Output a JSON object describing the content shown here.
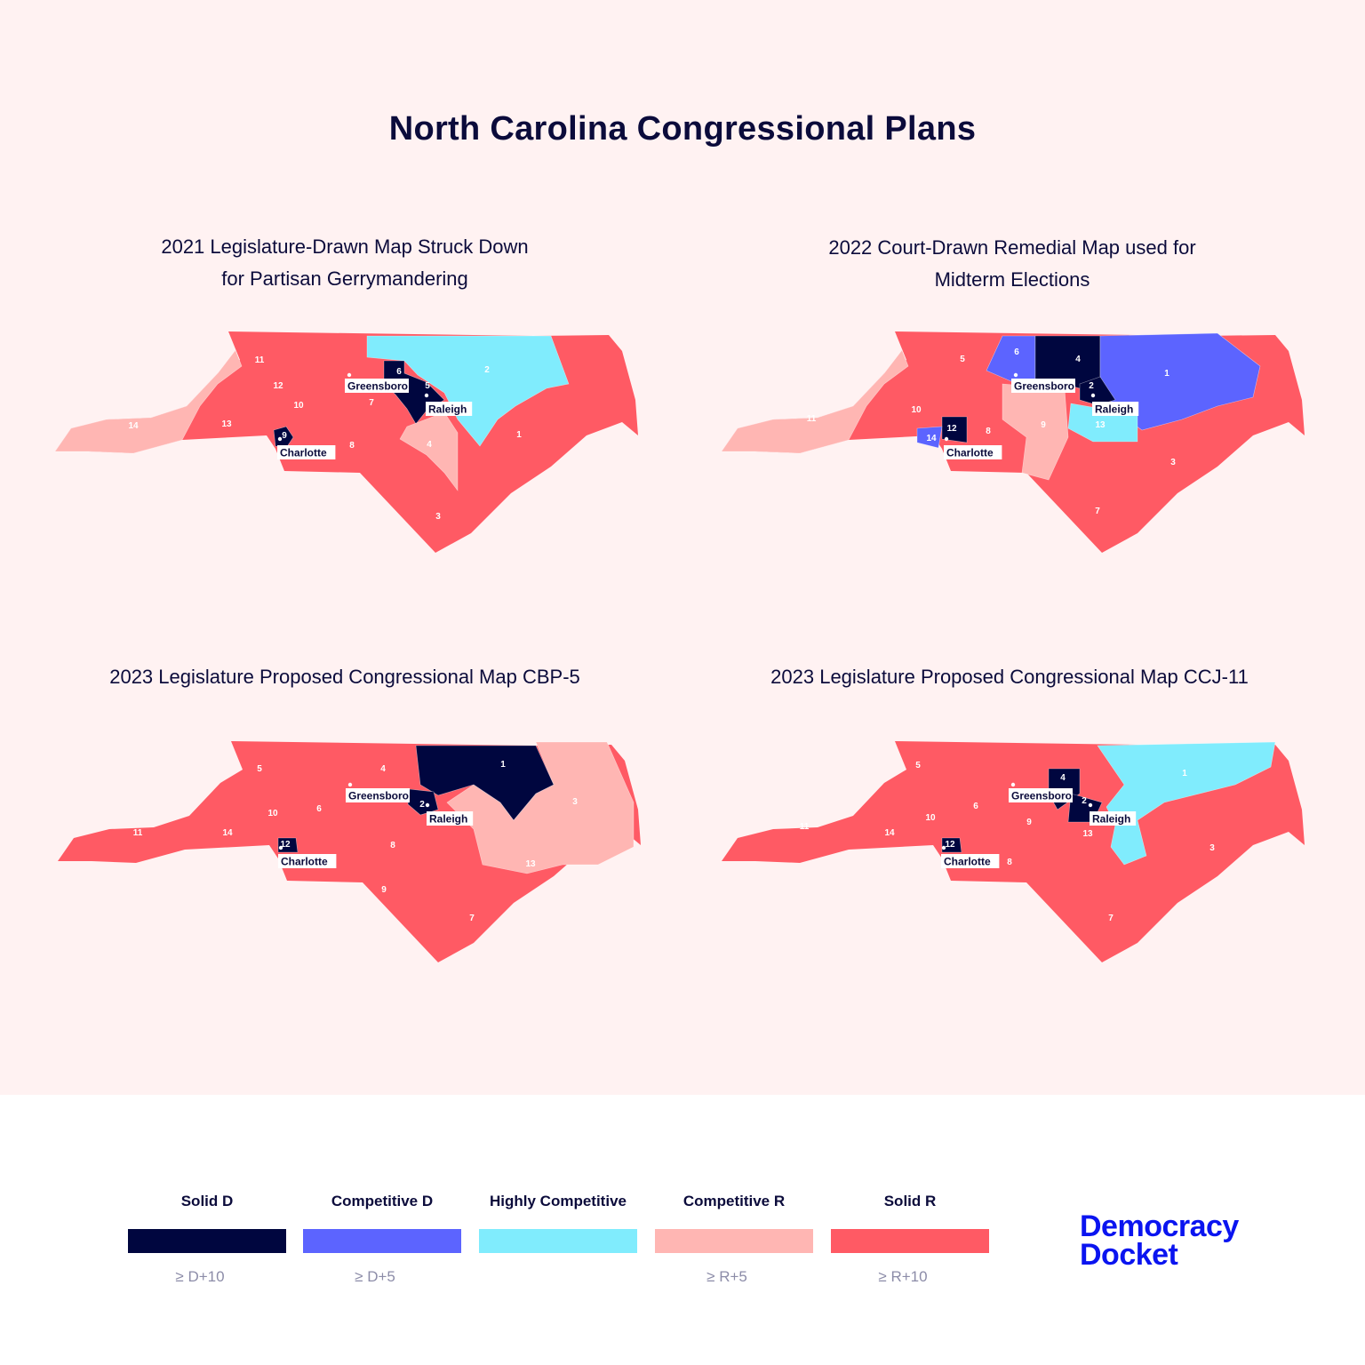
{
  "title": "North Carolina Congressional Plans",
  "colors": {
    "solid_d": "#00063f",
    "competitive_d": "#5c64ff",
    "highly_competitive": "#80ecfd",
    "competitive_r": "#ffb6b3",
    "solid_r": "#ff5a64"
  },
  "maps": [
    {
      "title_lines": [
        "2021 Legislature-Drawn Map Struck Down",
        "for Partisan Gerrymandering"
      ],
      "cities": [
        "Greensboro",
        "Raleigh",
        "Charlotte"
      ],
      "regions": {
        "west": "competitive_r",
        "a": "highly_competitive",
        "b": "solid_d",
        "c": "solid_d",
        "d": "competitive_r"
      },
      "district_labels": [
        {
          "text": "11",
          "cat": "solid_r"
        },
        {
          "text": "12",
          "cat": "solid_r"
        },
        {
          "text": "10",
          "cat": "solid_r"
        },
        {
          "text": "13",
          "cat": "solid_r"
        },
        {
          "text": "14",
          "cat": "competitive_r"
        },
        {
          "text": "9",
          "cat": "solid_d"
        },
        {
          "text": "8",
          "cat": "solid_r"
        },
        {
          "text": "7",
          "cat": "solid_r"
        },
        {
          "text": "6",
          "cat": "solid_d"
        },
        {
          "text": "5",
          "cat": "solid_d"
        },
        {
          "text": "2",
          "cat": "highly_competitive"
        },
        {
          "text": "4",
          "cat": "competitive_r"
        },
        {
          "text": "1",
          "cat": "solid_r"
        },
        {
          "text": "3",
          "cat": "solid_r"
        }
      ]
    },
    {
      "title_lines": [
        "2022 Court-Drawn Remedial Map used for",
        "Midterm Elections"
      ],
      "cities": [
        "Greensboro",
        "Raleigh",
        "Charlotte"
      ],
      "regions": {
        "west": "competitive_r",
        "a": "competitive_d",
        "b": "solid_d",
        "c": "competitive_d",
        "d": "solid_d",
        "e": "highly_competitive",
        "f": "competitive_r",
        "g": "solid_d",
        "h": "competitive_d"
      },
      "district_labels": [
        {
          "text": "5",
          "cat": "solid_r"
        },
        {
          "text": "6",
          "cat": "competitive_d"
        },
        {
          "text": "4",
          "cat": "solid_d"
        },
        {
          "text": "1",
          "cat": "competitive_d"
        },
        {
          "text": "2",
          "cat": "solid_d"
        },
        {
          "text": "10",
          "cat": "solid_r"
        },
        {
          "text": "11",
          "cat": "competitive_r"
        },
        {
          "text": "12",
          "cat": "solid_d"
        },
        {
          "text": "14",
          "cat": "competitive_d"
        },
        {
          "text": "8",
          "cat": "solid_r"
        },
        {
          "text": "9",
          "cat": "competitive_r"
        },
        {
          "text": "13",
          "cat": "highly_competitive"
        },
        {
          "text": "3",
          "cat": "solid_r"
        },
        {
          "text": "7",
          "cat": "solid_r"
        }
      ]
    },
    {
      "title_lines": [
        "2023 Legislature Proposed Congressional Map CBP-5"
      ],
      "cities": [
        "Greensboro",
        "Raleigh",
        "Charlotte"
      ],
      "regions": {
        "a": "competitive_r",
        "b": "solid_d",
        "c": "solid_d",
        "d": "solid_d"
      },
      "district_labels": [
        {
          "text": "5",
          "cat": "solid_r"
        },
        {
          "text": "4",
          "cat": "solid_r"
        },
        {
          "text": "1",
          "cat": "solid_d"
        },
        {
          "text": "2",
          "cat": "solid_d"
        },
        {
          "text": "3",
          "cat": "competitive_r"
        },
        {
          "text": "6",
          "cat": "solid_r"
        },
        {
          "text": "10",
          "cat": "solid_r"
        },
        {
          "text": "11",
          "cat": "solid_r"
        },
        {
          "text": "14",
          "cat": "solid_r"
        },
        {
          "text": "12",
          "cat": "solid_d"
        },
        {
          "text": "8",
          "cat": "solid_r"
        },
        {
          "text": "13",
          "cat": "solid_r"
        },
        {
          "text": "9",
          "cat": "solid_r"
        },
        {
          "text": "7",
          "cat": "solid_r"
        }
      ]
    },
    {
      "title_lines": [
        "2023 Legislature Proposed Congressional Map CCJ-11"
      ],
      "cities": [
        "Greensboro",
        "Raleigh",
        "Charlotte"
      ],
      "regions": {
        "a": "highly_competitive",
        "b": "solid_d",
        "c": "solid_d",
        "d": "solid_d"
      },
      "district_labels": [
        {
          "text": "5",
          "cat": "solid_r"
        },
        {
          "text": "4",
          "cat": "solid_d"
        },
        {
          "text": "1",
          "cat": "highly_competitive"
        },
        {
          "text": "2",
          "cat": "solid_d"
        },
        {
          "text": "6",
          "cat": "solid_r"
        },
        {
          "text": "10",
          "cat": "solid_r"
        },
        {
          "text": "11",
          "cat": "solid_r"
        },
        {
          "text": "14",
          "cat": "solid_r"
        },
        {
          "text": "9",
          "cat": "solid_r"
        },
        {
          "text": "13",
          "cat": "solid_r"
        },
        {
          "text": "12",
          "cat": "solid_d"
        },
        {
          "text": "8",
          "cat": "solid_r"
        },
        {
          "text": "3",
          "cat": "solid_r"
        },
        {
          "text": "7",
          "cat": "solid_r"
        }
      ]
    }
  ],
  "legend": [
    {
      "label": "Solid D",
      "note": "≥ D+10",
      "cat": "solid_d"
    },
    {
      "label": "Competitive D",
      "note": "≥ D+5",
      "cat": "competitive_d"
    },
    {
      "label": "Highly Competitive",
      "note": "",
      "cat": "highly_competitive"
    },
    {
      "label": "Competitive R",
      "note": "≥ R+5",
      "cat": "competitive_r"
    },
    {
      "label": "Solid R",
      "note": "≥ R+10",
      "cat": "solid_r"
    }
  ],
  "logo": {
    "line1": "Democracy",
    "line2": "Docket"
  }
}
